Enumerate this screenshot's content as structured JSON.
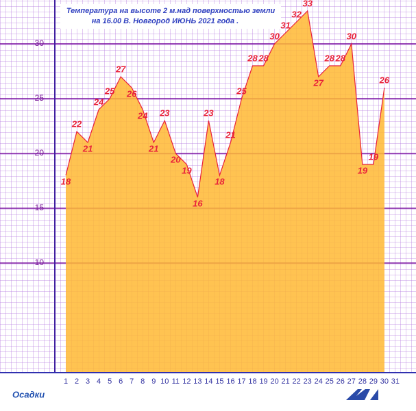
{
  "chart_data": {
    "type": "area",
    "title": [
      "Температура на высоте 2 м.над поверхностью земли",
      "на  16.00  В. Новгород  ИЮНЬ  2021 года ."
    ],
    "x_note": "Осадки",
    "categories": [
      "1",
      "2",
      "3",
      "4",
      "5",
      "6",
      "7",
      "8",
      "9",
      "10",
      "11",
      "12",
      "13",
      "14",
      "15",
      "16",
      "17",
      "18",
      "19",
      "20",
      "21",
      "22",
      "23",
      "24",
      "25",
      "26",
      "27",
      "28",
      "29",
      "30",
      "31"
    ],
    "values": [
      18,
      22,
      21,
      24,
      25,
      27,
      26,
      24,
      21,
      23,
      20,
      19,
      16,
      23,
      18,
      21,
      25,
      28,
      28,
      30,
      31,
      32,
      33,
      27,
      28,
      28,
      30,
      19,
      19,
      26,
      null
    ],
    "color": "#ffb833",
    "line_color": "#e8203a",
    "ylim": [
      0,
      34
    ],
    "yticks": [
      10,
      15,
      20,
      25,
      30
    ],
    "grid": true
  }
}
